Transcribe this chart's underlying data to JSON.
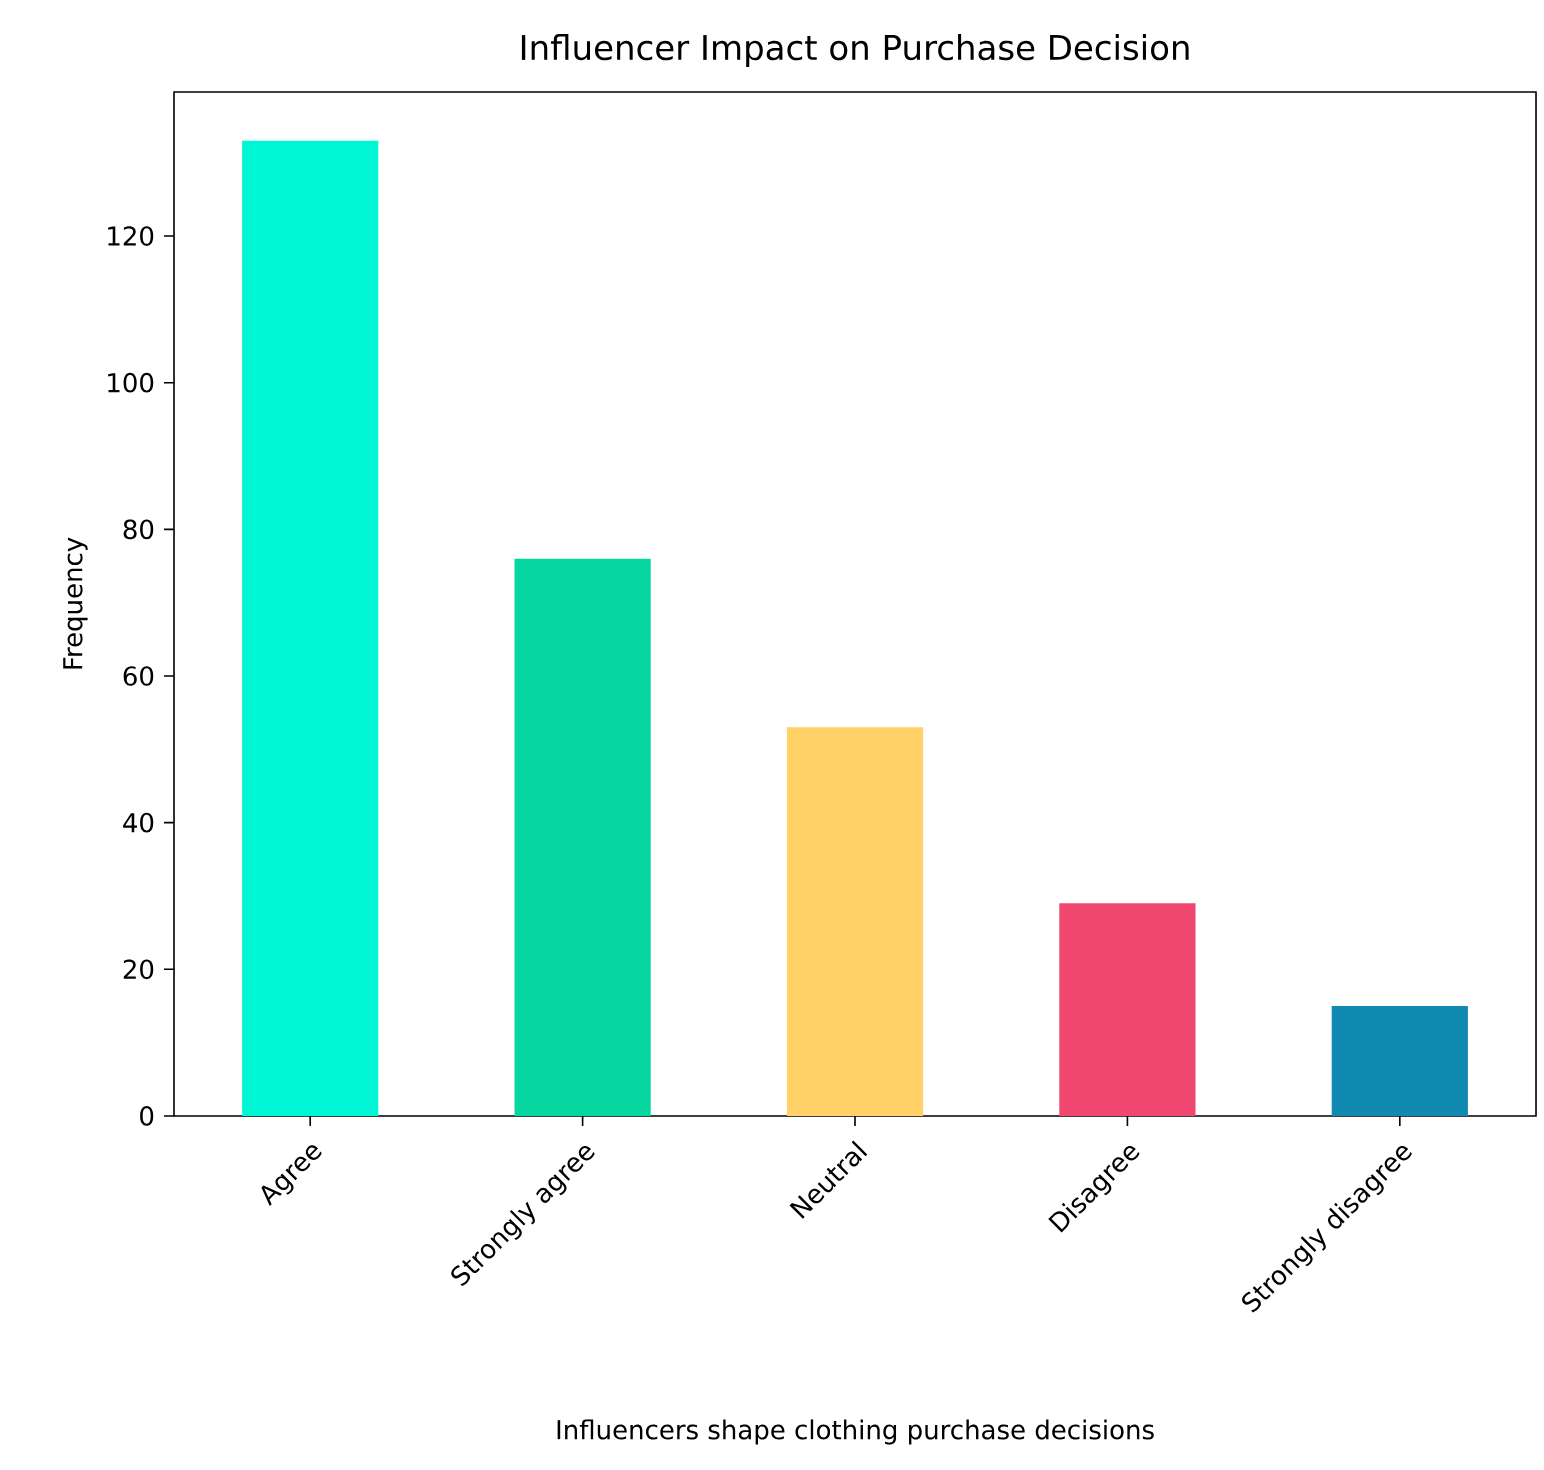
{
  "chart_data": {
    "type": "bar",
    "title": "Influencer Impact on Purchase Decision",
    "xlabel": "Influencers shape clothing purchase decisions",
    "ylabel": "Frequency",
    "categories": [
      "Agree",
      "Strongly agree",
      "Neutral",
      "Disagree",
      "Strongly disagree"
    ],
    "values": [
      133,
      76,
      53,
      29,
      15
    ],
    "colors": [
      "#00f5d4",
      "#06d6a0",
      "#ffd166",
      "#ef476f",
      "#118ab2"
    ],
    "ylim": [
      0,
      139.65
    ],
    "yticks": [
      0,
      20,
      40,
      60,
      80,
      100,
      120
    ]
  }
}
